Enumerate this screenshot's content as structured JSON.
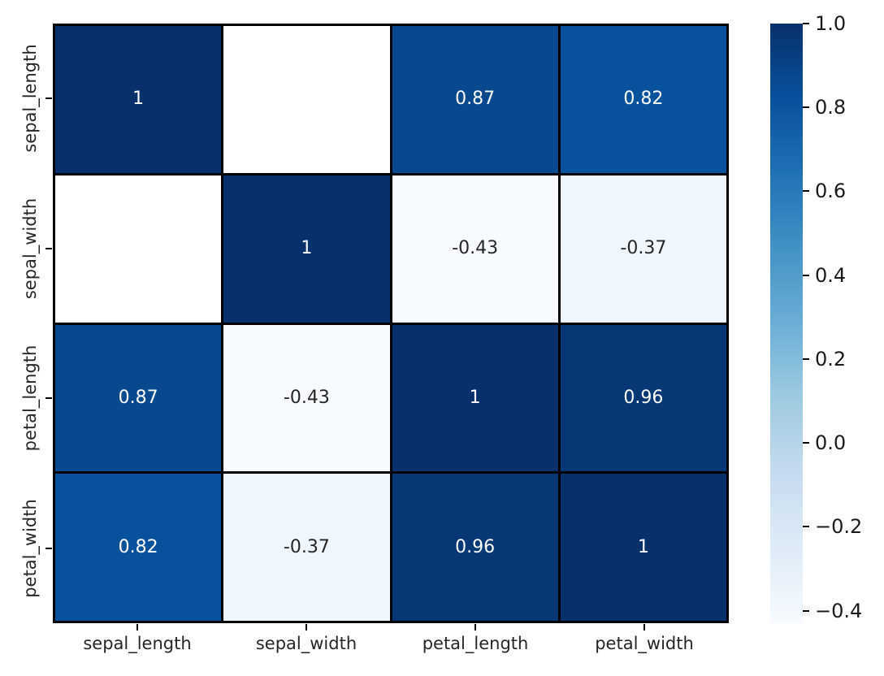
{
  "figure": {
    "background": "#ffffff",
    "title": ""
  },
  "chart_data": {
    "type": "heatmap",
    "title": "",
    "xlabel": "",
    "ylabel": "",
    "categories": [
      "sepal_length",
      "sepal_width",
      "petal_length",
      "petal_width"
    ],
    "x_tick_labels": [
      "sepal_length",
      "sepal_width",
      "petal_length",
      "petal_width"
    ],
    "y_tick_labels": [
      "sepal_length",
      "sepal_width",
      "petal_length",
      "petal_width"
    ],
    "matrix": [
      [
        1,
        null,
        0.87,
        0.82
      ],
      [
        null,
        1,
        -0.43,
        -0.37
      ],
      [
        0.87,
        -0.43,
        1,
        0.96
      ],
      [
        0.82,
        -0.37,
        0.96,
        1
      ]
    ],
    "annotations": [
      [
        "1",
        "",
        "0.87",
        "0.82"
      ],
      [
        "",
        "1",
        "-0.43",
        "-0.37"
      ],
      [
        "0.87",
        "-0.43",
        "1",
        "0.96"
      ],
      [
        "0.82",
        "-0.37",
        "0.96",
        "1"
      ]
    ],
    "masked_cells": [
      [
        0,
        1
      ],
      [
        1,
        0
      ]
    ],
    "cell_colors": [
      [
        "#08306b",
        "#ffffff",
        "#08488f",
        "#08519c"
      ],
      [
        "#ffffff",
        "#08306b",
        "#f7fbff",
        "#eff6fc"
      ],
      [
        "#08488f",
        "#f7fbff",
        "#08306b",
        "#083776"
      ],
      [
        "#08519c",
        "#eff6fc",
        "#083776",
        "#08306b"
      ]
    ],
    "text_colors": [
      [
        "#ffffff",
        "",
        "#ffffff",
        "#ffffff"
      ],
      [
        "",
        "#ffffff",
        "#262626",
        "#262626"
      ],
      [
        "#ffffff",
        "#262626",
        "#ffffff",
        "#ffffff"
      ],
      [
        "#ffffff",
        "#262626",
        "#ffffff",
        "#ffffff"
      ]
    ],
    "grid_line_color": "#000000",
    "colormap": "Blues",
    "colormap_stops": [
      {
        "pos": 0.0,
        "color": "#f7fbff"
      },
      {
        "pos": 0.125,
        "color": "#deebf7"
      },
      {
        "pos": 0.25,
        "color": "#c6dbef"
      },
      {
        "pos": 0.375,
        "color": "#9ecae1"
      },
      {
        "pos": 0.5,
        "color": "#6baed6"
      },
      {
        "pos": 0.625,
        "color": "#4292c6"
      },
      {
        "pos": 0.75,
        "color": "#2171b5"
      },
      {
        "pos": 0.875,
        "color": "#08519c"
      },
      {
        "pos": 1.0,
        "color": "#08306b"
      }
    ],
    "vmin": -0.43,
    "vmax": 1.0,
    "colorbar": {
      "position": "right",
      "tick_values": [
        1.0,
        0.8,
        0.6,
        0.4,
        0.2,
        0.0,
        -0.2,
        -0.4
      ],
      "tick_labels": [
        "1.0",
        "0.8",
        "0.6",
        "0.4",
        "0.2",
        "0.0",
        "−0.2",
        "−0.4"
      ]
    }
  }
}
